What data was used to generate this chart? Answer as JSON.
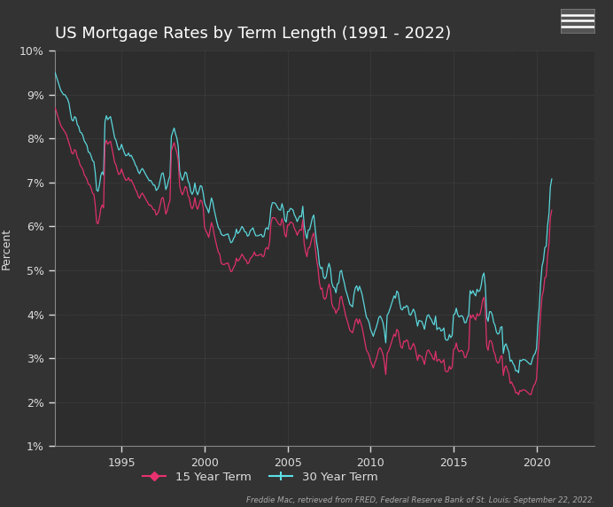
{
  "title": "US Mortgage Rates by Term Length (1991 - 2022)",
  "ylabel": "Percent",
  "source_text": "Freddie Mac, retrieved from FRED, Federal Reserve Bank of St. Louis; September 22, 2022.",
  "background_color": "#333333",
  "plot_bg_color": "#2d2d2d",
  "text_color": "#dddddd",
  "title_color": "#ffffff",
  "grid_color": "#666666",
  "color_15yr": "#e8316e",
  "color_30yr": "#5de0e6",
  "ylim_min": 1,
  "ylim_max": 10,
  "yticks": [
    1,
    2,
    3,
    4,
    5,
    6,
    7,
    8,
    9,
    10
  ],
  "xticks": [
    1995,
    2000,
    2005,
    2010,
    2015,
    2020
  ],
  "legend_15yr": "15 Year Term",
  "legend_30yr": "30 Year Term",
  "rate_30yr_monthly": [
    9.5,
    9.4,
    9.3,
    9.2,
    9.1,
    9.05,
    9.0,
    9.0,
    8.95,
    8.9,
    8.8,
    8.6,
    8.43,
    8.4,
    8.5,
    8.47,
    8.32,
    8.27,
    8.15,
    8.13,
    8.07,
    7.95,
    7.9,
    7.84,
    7.69,
    7.68,
    7.6,
    7.5,
    7.47,
    7.22,
    6.83,
    6.8,
    6.94,
    7.16,
    7.24,
    7.17,
    8.38,
    8.52,
    8.43,
    8.47,
    8.5,
    8.35,
    8.18,
    8.02,
    7.96,
    7.83,
    7.74,
    7.77,
    7.87,
    7.77,
    7.68,
    7.61,
    7.62,
    7.67,
    7.6,
    7.62,
    7.55,
    7.49,
    7.4,
    7.35,
    7.25,
    7.2,
    7.28,
    7.32,
    7.27,
    7.21,
    7.15,
    7.1,
    7.04,
    7.05,
    7.0,
    6.94,
    6.94,
    6.82,
    6.85,
    6.92,
    7.06,
    7.2,
    7.22,
    7.06,
    6.84,
    6.92,
    7.06,
    7.15,
    8.05,
    8.15,
    8.24,
    8.11,
    8.01,
    7.81,
    7.26,
    7.12,
    7.05,
    7.13,
    7.24,
    7.21,
    7.04,
    6.97,
    6.8,
    6.73,
    6.8,
    6.99,
    6.8,
    6.72,
    6.82,
    6.93,
    6.91,
    6.76,
    6.54,
    6.46,
    6.4,
    6.31,
    6.48,
    6.65,
    6.55,
    6.37,
    6.23,
    6.09,
    5.97,
    5.93,
    5.83,
    5.8,
    5.79,
    5.81,
    5.82,
    5.83,
    5.72,
    5.63,
    5.65,
    5.73,
    5.78,
    5.94,
    5.84,
    5.87,
    5.93,
    6.0,
    5.96,
    5.88,
    5.87,
    5.78,
    5.8,
    5.9,
    5.93,
    5.97,
    5.87,
    5.79,
    5.79,
    5.79,
    5.81,
    5.82,
    5.76,
    5.78,
    5.94,
    5.97,
    5.93,
    6.09,
    6.41,
    6.54,
    6.54,
    6.53,
    6.48,
    6.42,
    6.38,
    6.37,
    6.52,
    6.4,
    6.15,
    6.1,
    6.34,
    6.34,
    6.41,
    6.4,
    6.37,
    6.26,
    6.2,
    6.11,
    6.19,
    6.24,
    6.22,
    6.46,
    6.03,
    5.84,
    5.72,
    5.92,
    5.93,
    6.06,
    6.2,
    6.26,
    5.94,
    5.65,
    5.46,
    5.14,
    5.04,
    5.07,
    4.85,
    4.81,
    4.86,
    5.05,
    5.16,
    5.04,
    4.72,
    4.62,
    4.6,
    4.49,
    4.69,
    4.71,
    4.97,
    5.0,
    4.84,
    4.72,
    4.56,
    4.46,
    4.35,
    4.23,
    4.2,
    4.17,
    4.45,
    4.6,
    4.65,
    4.53,
    4.64,
    4.55,
    4.44,
    4.27,
    4.11,
    3.94,
    3.89,
    3.81,
    3.66,
    3.58,
    3.5,
    3.61,
    3.69,
    3.8,
    3.93,
    3.96,
    3.9,
    3.81,
    3.62,
    3.35,
    3.98,
    4.03,
    4.12,
    4.22,
    4.32,
    4.42,
    4.37,
    4.53,
    4.49,
    4.28,
    4.12,
    4.1,
    4.17,
    4.15,
    4.2,
    4.17,
    4.0,
    3.98,
    4.05,
    4.12,
    4.05,
    3.89,
    3.73,
    3.86,
    3.85,
    3.84,
    3.76,
    3.66,
    3.84,
    3.97,
    3.99,
    3.92,
    3.88,
    3.8,
    3.76,
    3.96,
    3.65,
    3.69,
    3.69,
    3.62,
    3.64,
    3.69,
    3.44,
    3.41,
    3.42,
    3.54,
    3.47,
    3.52,
    3.99,
    4.01,
    4.14,
    4.0,
    3.94,
    3.96,
    3.97,
    3.93,
    3.81,
    3.81,
    3.92,
    3.99,
    4.54,
    4.47,
    4.54,
    4.47,
    4.42,
    4.57,
    4.52,
    4.54,
    4.66,
    4.87,
    4.94,
    4.64,
    3.94,
    3.84,
    4.06,
    4.06,
    3.99,
    3.82,
    3.75,
    3.6,
    3.55,
    3.57,
    3.7,
    3.72,
    3.11,
    3.29,
    3.33,
    3.23,
    3.15,
    2.93,
    2.96,
    2.88,
    2.83,
    2.71,
    2.72,
    2.67,
    2.96,
    2.94,
    2.97,
    2.97,
    2.96,
    2.93,
    2.9,
    2.87,
    2.86,
    2.98,
    3.07,
    3.11,
    3.22,
    3.76,
    4.17,
    4.72,
    5.1,
    5.23,
    5.52,
    5.55,
    6.02,
    6.29,
    6.9,
    7.08
  ],
  "rate_15yr_monthly": [
    8.7,
    8.6,
    8.5,
    8.4,
    8.3,
    8.25,
    8.2,
    8.15,
    8.1,
    8.0,
    7.9,
    7.8,
    7.67,
    7.65,
    7.75,
    7.72,
    7.57,
    7.52,
    7.4,
    7.35,
    7.3,
    7.18,
    7.13,
    7.07,
    6.96,
    6.95,
    6.87,
    6.76,
    6.73,
    6.48,
    6.09,
    6.06,
    6.2,
    6.41,
    6.49,
    6.42,
    7.86,
    7.96,
    7.87,
    7.91,
    7.94,
    7.79,
    7.62,
    7.46,
    7.4,
    7.27,
    7.18,
    7.21,
    7.31,
    7.21,
    7.12,
    7.05,
    7.06,
    7.11,
    7.04,
    7.06,
    6.99,
    6.93,
    6.84,
    6.79,
    6.69,
    6.64,
    6.72,
    6.76,
    6.71,
    6.65,
    6.59,
    6.54,
    6.48,
    6.49,
    6.44,
    6.38,
    6.38,
    6.26,
    6.29,
    6.36,
    6.5,
    6.64,
    6.66,
    6.5,
    6.28,
    6.36,
    6.5,
    6.59,
    7.72,
    7.82,
    7.91,
    7.78,
    7.68,
    7.48,
    6.93,
    6.79,
    6.72,
    6.8,
    6.91,
    6.88,
    6.71,
    6.64,
    6.47,
    6.4,
    6.47,
    6.66,
    6.47,
    6.39,
    6.49,
    6.6,
    6.58,
    6.43,
    5.98,
    5.9,
    5.84,
    5.75,
    5.92,
    6.09,
    5.99,
    5.81,
    5.67,
    5.53,
    5.41,
    5.37,
    5.17,
    5.14,
    5.13,
    5.15,
    5.16,
    5.17,
    5.06,
    4.97,
    4.99,
    5.07,
    5.12,
    5.28,
    5.21,
    5.24,
    5.3,
    5.37,
    5.33,
    5.25,
    5.24,
    5.15,
    5.17,
    5.27,
    5.3,
    5.34,
    5.42,
    5.34,
    5.34,
    5.34,
    5.36,
    5.37,
    5.31,
    5.33,
    5.49,
    5.52,
    5.48,
    5.64,
    6.07,
    6.2,
    6.2,
    6.19,
    6.14,
    6.08,
    6.04,
    6.03,
    6.18,
    6.06,
    5.81,
    5.76,
    6.03,
    6.03,
    6.1,
    6.09,
    6.06,
    5.95,
    5.89,
    5.8,
    5.88,
    5.93,
    5.91,
    6.15,
    5.62,
    5.43,
    5.31,
    5.51,
    5.52,
    5.65,
    5.79,
    5.85,
    5.53,
    5.24,
    5.05,
    4.73,
    4.57,
    4.6,
    4.38,
    4.34,
    4.39,
    4.58,
    4.69,
    4.57,
    4.25,
    4.15,
    4.13,
    4.02,
    4.1,
    4.12,
    4.38,
    4.41,
    4.25,
    4.13,
    3.97,
    3.87,
    3.76,
    3.64,
    3.61,
    3.58,
    3.7,
    3.85,
    3.9,
    3.78,
    3.89,
    3.8,
    3.69,
    3.52,
    3.36,
    3.19,
    3.14,
    3.06,
    2.94,
    2.86,
    2.78,
    2.89,
    2.97,
    3.08,
    3.21,
    3.24,
    3.18,
    3.09,
    2.9,
    2.63,
    3.11,
    3.16,
    3.25,
    3.35,
    3.45,
    3.55,
    3.5,
    3.66,
    3.62,
    3.41,
    3.25,
    3.23,
    3.39,
    3.37,
    3.42,
    3.39,
    3.22,
    3.2,
    3.27,
    3.34,
    3.27,
    3.11,
    2.95,
    3.08,
    3.05,
    3.04,
    2.96,
    2.86,
    3.04,
    3.17,
    3.19,
    3.12,
    3.08,
    3.0,
    2.96,
    3.16,
    2.93,
    2.97,
    2.97,
    2.9,
    2.92,
    2.97,
    2.72,
    2.69,
    2.7,
    2.82,
    2.75,
    2.8,
    3.2,
    3.22,
    3.35,
    3.21,
    3.15,
    3.17,
    3.18,
    3.14,
    3.02,
    3.02,
    3.13,
    3.2,
    3.99,
    3.92,
    3.99,
    3.92,
    3.87,
    4.02,
    3.97,
    3.99,
    4.11,
    4.32,
    4.39,
    4.09,
    3.28,
    3.18,
    3.4,
    3.4,
    3.33,
    3.16,
    3.09,
    2.94,
    2.89,
    2.91,
    3.04,
    3.06,
    2.61,
    2.79,
    2.83,
    2.73,
    2.65,
    2.43,
    2.46,
    2.38,
    2.33,
    2.21,
    2.22,
    2.17,
    2.27,
    2.25,
    2.28,
    2.28,
    2.27,
    2.24,
    2.21,
    2.18,
    2.17,
    2.29,
    2.38,
    2.42,
    2.53,
    3.07,
    3.48,
    4.03,
    4.41,
    4.54,
    4.83,
    4.86,
    5.33,
    5.6,
    6.21,
    6.37
  ]
}
